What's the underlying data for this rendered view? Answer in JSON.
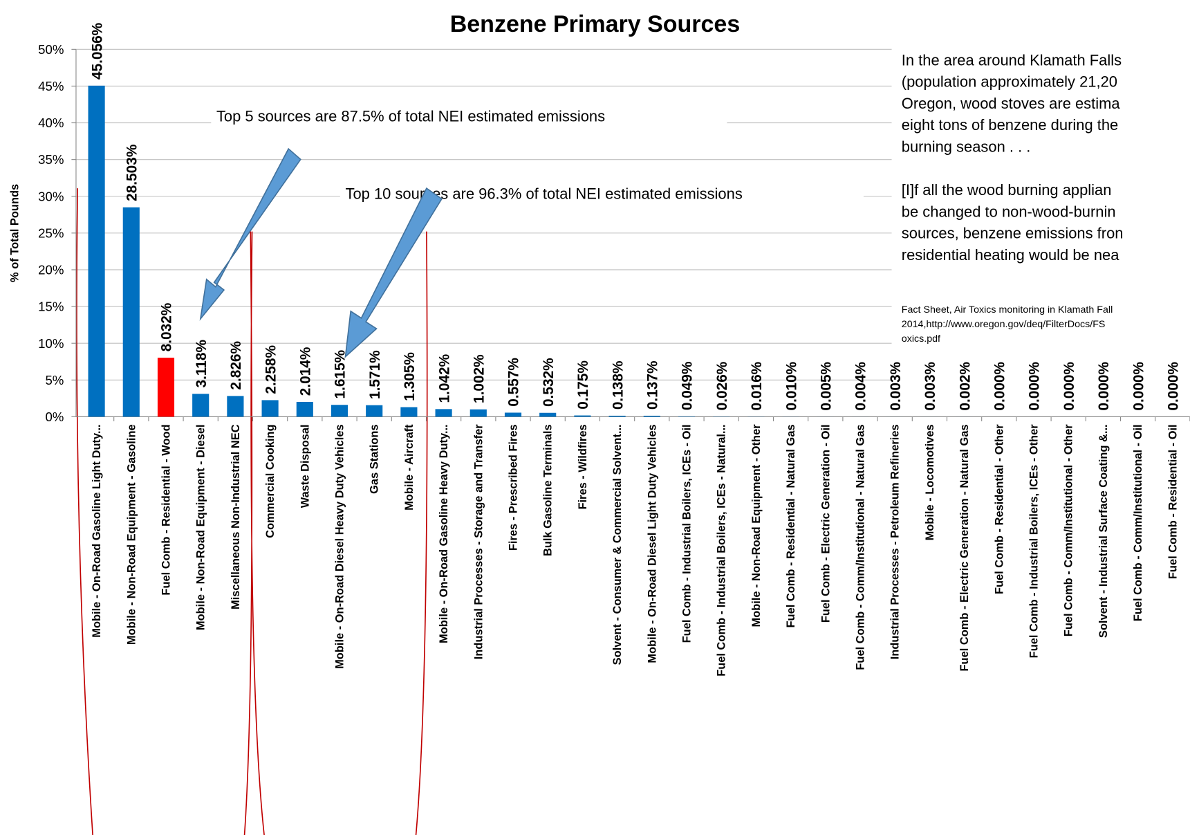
{
  "chart_data": {
    "type": "bar",
    "title": "Benzene Primary Sources",
    "y_label": "% of Total Pounds",
    "categories": [
      "Mobile - On-Road Gasoline Light Duty...",
      "Mobile - Non-Road Equipment - Gasoline",
      "Fuel Comb - Residential - Wood",
      "Mobile - Non-Road Equipment - Diesel",
      "Miscellaneous Non-Industrial NEC",
      "Commercial Cooking",
      "Waste Disposal",
      "Mobile - On-Road Diesel Heavy Duty Vehicles",
      "Gas Stations",
      "Mobile - Aircraft",
      "Mobile - On-Road Gasoline Heavy Duty...",
      "Industrial Processes - Storage and Transfer",
      "Fires - Prescribed Fires",
      "Bulk Gasoline Terminals",
      "Fires - Wildfires",
      "Solvent - Consumer & Commercial Solvent...",
      "Mobile - On-Road Diesel Light Duty Vehicles",
      "Fuel Comb - Industrial Boilers, ICEs - Oil",
      "Fuel Comb - Industrial Boilers, ICEs - Natural...",
      "Mobile - Non-Road Equipment - Other",
      "Fuel Comb - Residential - Natural Gas",
      "Fuel Comb - Electric Generation - Oil",
      "Fuel Comb - Comm/Institutional - Natural Gas",
      "Industrial Processes - Petroleum Refineries",
      "Mobile - Locomotives",
      "Fuel Comb - Electric Generation - Natural Gas",
      "Fuel Comb - Residential - Other",
      "Fuel Comb - Industrial Boilers, ICEs - Other",
      "Fuel Comb - Comm/Institutional - Other",
      "Solvent - Industrial Surface Coating &...",
      "Fuel Comb - Comm/Institutional - Oil",
      "Fuel Comb - Residential - Oil"
    ],
    "values": [
      45.056,
      28.503,
      8.032,
      3.118,
      2.826,
      2.258,
      2.014,
      1.615,
      1.571,
      1.305,
      1.042,
      1.002,
      0.557,
      0.532,
      0.175,
      0.138,
      0.137,
      0.049,
      0.026,
      0.016,
      0.01,
      0.005,
      0.004,
      0.003,
      0.003,
      0.002,
      0.0,
      0.0,
      0.0,
      0.0,
      0.0,
      0.0
    ],
    "value_labels": [
      "45.056%",
      "28.503%",
      "8.032%",
      "3.118%",
      "2.826%",
      "2.258%",
      "2.014%",
      "1.615%",
      "1.571%",
      "1.305%",
      "1.042%",
      "1.002%",
      "0.557%",
      "0.532%",
      "0.175%",
      "0.138%",
      "0.137%",
      "0.049%",
      "0.026%",
      "0.016%",
      "0.010%",
      "0.005%",
      "0.004%",
      "0.003%",
      "0.003%",
      "0.002%",
      "0.000%",
      "0.000%",
      "0.000%",
      "0.000%",
      "0.000%",
      "0.000%"
    ],
    "colors": [
      "#0070c0",
      "#0070c0",
      "#ff0000",
      "#0070c0",
      "#0070c0",
      "#0070c0",
      "#0070c0",
      "#0070c0",
      "#0070c0",
      "#0070c0",
      "#0070c0",
      "#0070c0",
      "#0070c0",
      "#0070c0",
      "#0070c0",
      "#0070c0",
      "#0070c0",
      "#0070c0",
      "#0070c0",
      "#0070c0",
      "#0070c0",
      "#0070c0",
      "#0070c0",
      "#0070c0",
      "#0070c0",
      "#0070c0",
      "#0070c0",
      "#0070c0",
      "#0070c0",
      "#0070c0",
      "#0070c0",
      "#0070c0"
    ],
    "ylim": [
      0,
      50
    ],
    "yticks": [
      {
        "value": 0,
        "label": "0%"
      },
      {
        "value": 5,
        "label": "5%"
      },
      {
        "value": 10,
        "label": "10%"
      },
      {
        "value": 15,
        "label": "15%"
      },
      {
        "value": 20,
        "label": "20%"
      },
      {
        "value": 25,
        "label": "25%"
      },
      {
        "value": 30,
        "label": "30%"
      },
      {
        "value": 35,
        "label": "35%"
      },
      {
        "value": 40,
        "label": "40%"
      },
      {
        "value": 45,
        "label": "45%"
      },
      {
        "value": 50,
        "label": "50%"
      }
    ],
    "grid": true,
    "annotations": [
      "Top 5 sources are 87.5% of total NEI estimated emissions",
      "Top 10 sources are 96.3% of total NEI estimated emissions"
    ]
  },
  "side_text": {
    "quote": [
      "In the area around Klamath Falls",
      "(population approximately 21,20",
      "Oregon, wood stoves are estima",
      "eight tons of benzene during the",
      "burning season . . .",
      "",
      "[I]f all the wood burning applian",
      "be changed to non-wood-burnin",
      "sources, benzene emissions fron",
      "residential heating would be nea"
    ],
    "citation": [
      "Fact Sheet, Air Toxics monitoring in Klamath Fall",
      "2014,http://www.oregon.gov/deq/FilterDocs/FS",
      "oxics.pdf"
    ]
  }
}
